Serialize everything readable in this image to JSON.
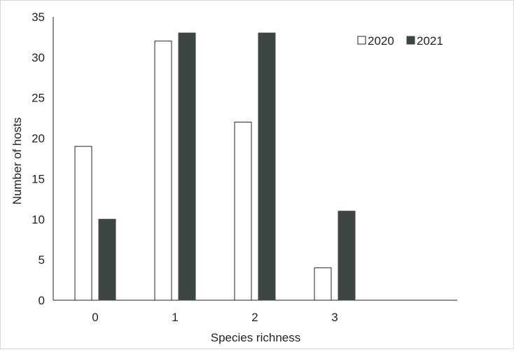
{
  "chart_data": {
    "type": "bar",
    "title": "",
    "xlabel": "Species richness",
    "ylabel": "Number of hosts",
    "categories": [
      "0",
      "1",
      "2",
      "3"
    ],
    "ylim": [
      0,
      35
    ],
    "yticks": [
      "0",
      "5",
      "10",
      "15",
      "20",
      "25",
      "30",
      "35"
    ],
    "grid": false,
    "legend_position": "top-right",
    "series": [
      {
        "name": "2020",
        "values": [
          19,
          32,
          22,
          4
        ],
        "color": "#ffffff",
        "stroke": "#222222"
      },
      {
        "name": "2021",
        "values": [
          10,
          33,
          33,
          11
        ],
        "color": "#3d4644",
        "stroke": "#3d4644"
      }
    ]
  }
}
